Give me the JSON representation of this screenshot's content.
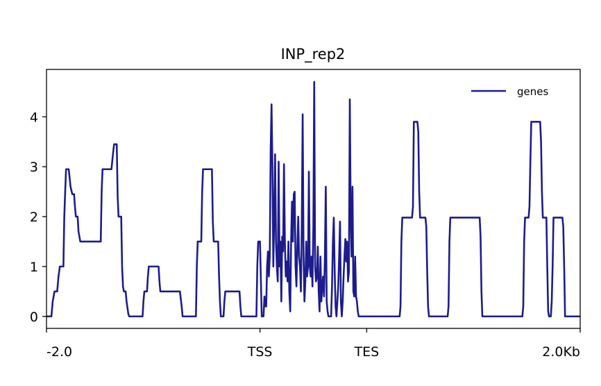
{
  "chart_data": {
    "type": "line",
    "title": "INP_rep2",
    "xlabel": "",
    "ylabel": "",
    "x_range": [
      0,
      600
    ],
    "ylim": [
      -0.24,
      4.95
    ],
    "y_ticks": [
      0,
      1,
      2,
      3,
      4
    ],
    "x_ticks": [
      {
        "pos": 0,
        "label": "-2.0"
      },
      {
        "pos": 240,
        "label": "TSS"
      },
      {
        "pos": 360,
        "label": "TES"
      },
      {
        "pos": 600,
        "label": "2.0Kb"
      }
    ],
    "grid": false,
    "legend": {
      "position": "top-right",
      "entries": [
        "genes"
      ]
    },
    "series": [
      {
        "name": "genes",
        "color": "#1c1c8c",
        "points": [
          [
            0,
            0
          ],
          [
            5.5,
            0
          ],
          [
            7,
            0.3
          ],
          [
            9,
            0.5
          ],
          [
            12,
            0.5
          ],
          [
            13.5,
            0.8
          ],
          [
            15,
            1
          ],
          [
            19,
            1
          ],
          [
            20,
            2
          ],
          [
            21,
            2.5
          ],
          [
            22,
            2.95
          ],
          [
            25,
            2.95
          ],
          [
            27,
            2.6
          ],
          [
            29,
            2.45
          ],
          [
            31,
            2.45
          ],
          [
            32,
            2.2
          ],
          [
            33,
            2
          ],
          [
            35,
            2
          ],
          [
            36,
            1.7
          ],
          [
            38,
            1.5
          ],
          [
            61,
            1.5
          ],
          [
            62,
            2.5
          ],
          [
            63,
            2.95
          ],
          [
            73,
            2.95
          ],
          [
            75,
            3.3
          ],
          [
            76,
            3.45
          ],
          [
            79,
            3.45
          ],
          [
            80,
            2.4
          ],
          [
            81,
            2
          ],
          [
            84,
            2
          ],
          [
            85,
            1
          ],
          [
            86,
            0.6
          ],
          [
            87,
            0.5
          ],
          [
            89,
            0.5
          ],
          [
            90,
            0.3
          ],
          [
            92,
            0.05
          ],
          [
            93,
            0
          ],
          [
            108,
            0
          ],
          [
            109,
            0.3
          ],
          [
            110,
            0.5
          ],
          [
            113,
            0.5
          ],
          [
            114,
            0.8
          ],
          [
            115,
            1
          ],
          [
            126,
            1
          ],
          [
            127,
            0.7
          ],
          [
            128,
            0.5
          ],
          [
            150,
            0.5
          ],
          [
            152,
            0.2
          ],
          [
            153,
            0
          ],
          [
            168,
            0
          ],
          [
            169,
            1
          ],
          [
            170,
            1.5
          ],
          [
            174,
            1.5
          ],
          [
            175,
            2.5
          ],
          [
            176,
            2.95
          ],
          [
            186,
            2.95
          ],
          [
            187,
            1.9
          ],
          [
            188,
            1.5
          ],
          [
            193,
            1.5
          ],
          [
            194,
            0.8
          ],
          [
            195,
            0.3
          ],
          [
            196,
            0
          ],
          [
            199,
            0
          ],
          [
            200,
            0.3
          ],
          [
            201,
            0.5
          ],
          [
            217,
            0.5
          ],
          [
            218,
            0.2
          ],
          [
            219,
            0
          ],
          [
            236,
            0
          ],
          [
            237,
            1
          ],
          [
            238,
            1.5
          ],
          [
            240,
            1.5
          ],
          [
            242,
            0
          ],
          [
            244,
            0
          ],
          [
            245,
            0.4
          ],
          [
            246,
            0.2
          ],
          [
            247,
            0.2
          ],
          [
            248,
            1
          ],
          [
            249,
            1.3
          ],
          [
            250,
            0.8
          ],
          [
            251,
            1.2
          ],
          [
            252,
            3.3
          ],
          [
            253,
            4.25
          ],
          [
            254,
            3
          ],
          [
            255,
            1
          ],
          [
            256,
            2
          ],
          [
            257,
            3.25
          ],
          [
            258,
            1.5
          ],
          [
            259,
            1
          ],
          [
            260,
            0.7
          ],
          [
            261,
            3.1
          ],
          [
            262,
            1
          ],
          [
            263,
            1.5
          ],
          [
            264,
            0.3
          ],
          [
            265,
            1.6
          ],
          [
            266,
            1.3
          ],
          [
            267,
            3.05
          ],
          [
            268,
            1.5
          ],
          [
            269,
            0.8
          ],
          [
            270,
            1.1
          ],
          [
            271,
            0.7
          ],
          [
            272,
            1.5
          ],
          [
            273,
            0.5
          ],
          [
            274,
            0.1
          ],
          [
            275,
            1.5
          ],
          [
            276,
            2.3
          ],
          [
            277,
            1.5
          ],
          [
            278,
            2.45
          ],
          [
            279,
            2.5
          ],
          [
            280,
            1
          ],
          [
            281,
            0.6
          ],
          [
            282,
            1.4
          ],
          [
            283,
            2
          ],
          [
            284,
            1.2
          ],
          [
            285,
            1
          ],
          [
            286,
            0.5
          ],
          [
            287,
            1.8
          ],
          [
            288,
            4.05
          ],
          [
            289,
            1.2
          ],
          [
            290,
            0.3
          ],
          [
            291,
            0.7
          ],
          [
            292,
            1.5
          ],
          [
            293,
            0.8
          ],
          [
            294,
            1
          ],
          [
            295,
            2.9
          ],
          [
            296,
            1
          ],
          [
            297,
            0.8
          ],
          [
            298,
            1.2
          ],
          [
            299,
            0.6
          ],
          [
            300,
            1.8
          ],
          [
            301,
            4.7
          ],
          [
            302,
            1
          ],
          [
            303,
            0.7
          ],
          [
            304,
            0.8
          ],
          [
            305,
            1.4
          ],
          [
            306,
            0.5
          ],
          [
            307,
            0.1
          ],
          [
            308,
            1.2
          ],
          [
            309,
            0.3
          ],
          [
            310,
            0.6
          ],
          [
            311,
            0.8
          ],
          [
            312,
            0.4
          ],
          [
            313,
            1.2
          ],
          [
            314,
            2.6
          ],
          [
            315,
            0.3
          ],
          [
            316,
            0.1
          ],
          [
            317,
            0
          ],
          [
            320,
            0
          ],
          [
            321,
            0.6
          ],
          [
            322,
            1.5
          ],
          [
            323,
            1.98
          ],
          [
            324,
            0.9
          ],
          [
            325,
            0.2
          ],
          [
            326,
            0
          ],
          [
            327,
            0.3
          ],
          [
            328,
            0.6
          ],
          [
            329,
            1.2
          ],
          [
            330,
            1.9
          ],
          [
            331,
            0.3
          ],
          [
            332,
            0
          ],
          [
            333,
            0.3
          ],
          [
            334,
            0.8
          ],
          [
            335,
            1.2
          ],
          [
            336,
            1.55
          ],
          [
            337,
            1.1
          ],
          [
            338,
            1.5
          ],
          [
            339,
            0.7
          ],
          [
            340,
            0.9
          ],
          [
            341,
            4.35
          ],
          [
            342,
            2
          ],
          [
            343,
            1.2
          ],
          [
            344,
            2.6
          ],
          [
            345,
            0.5
          ],
          [
            346,
            0.4
          ],
          [
            347,
            1.2
          ],
          [
            348,
            0.4
          ],
          [
            349,
            0.3
          ],
          [
            350,
            0.1
          ],
          [
            351,
            0
          ],
          [
            397,
            0
          ],
          [
            398,
            0.2
          ],
          [
            399,
            1.5
          ],
          [
            400,
            1.98
          ],
          [
            411,
            1.98
          ],
          [
            412,
            2.2
          ],
          [
            413,
            3.9
          ],
          [
            417,
            3.9
          ],
          [
            418,
            3.7
          ],
          [
            419,
            2.5
          ],
          [
            420,
            1.98
          ],
          [
            426,
            1.98
          ],
          [
            427,
            1.8
          ],
          [
            428,
            0.9
          ],
          [
            429,
            0.2
          ],
          [
            430,
            0
          ],
          [
            451,
            0
          ],
          [
            452,
            0.2
          ],
          [
            453,
            1.5
          ],
          [
            454,
            1.98
          ],
          [
            487,
            1.98
          ],
          [
            488,
            1.6
          ],
          [
            489,
            0.5
          ],
          [
            490,
            0
          ],
          [
            535,
            0
          ],
          [
            536,
            0.2
          ],
          [
            537,
            1.5
          ],
          [
            538,
            1.98
          ],
          [
            542,
            1.98
          ],
          [
            543,
            2.2
          ],
          [
            544,
            3.1
          ],
          [
            545,
            3.9
          ],
          [
            555,
            3.9
          ],
          [
            556,
            3.5
          ],
          [
            557,
            2.5
          ],
          [
            558,
            1.98
          ],
          [
            562,
            1.98
          ],
          [
            563,
            1
          ],
          [
            564,
            0.1
          ],
          [
            565,
            0
          ],
          [
            567,
            0
          ],
          [
            568,
            0.3
          ],
          [
            569,
            1
          ],
          [
            570,
            1.98
          ],
          [
            580,
            1.98
          ],
          [
            581,
            1.8
          ],
          [
            582,
            1
          ],
          [
            583,
            0
          ],
          [
            600,
            0
          ]
        ]
      }
    ]
  }
}
